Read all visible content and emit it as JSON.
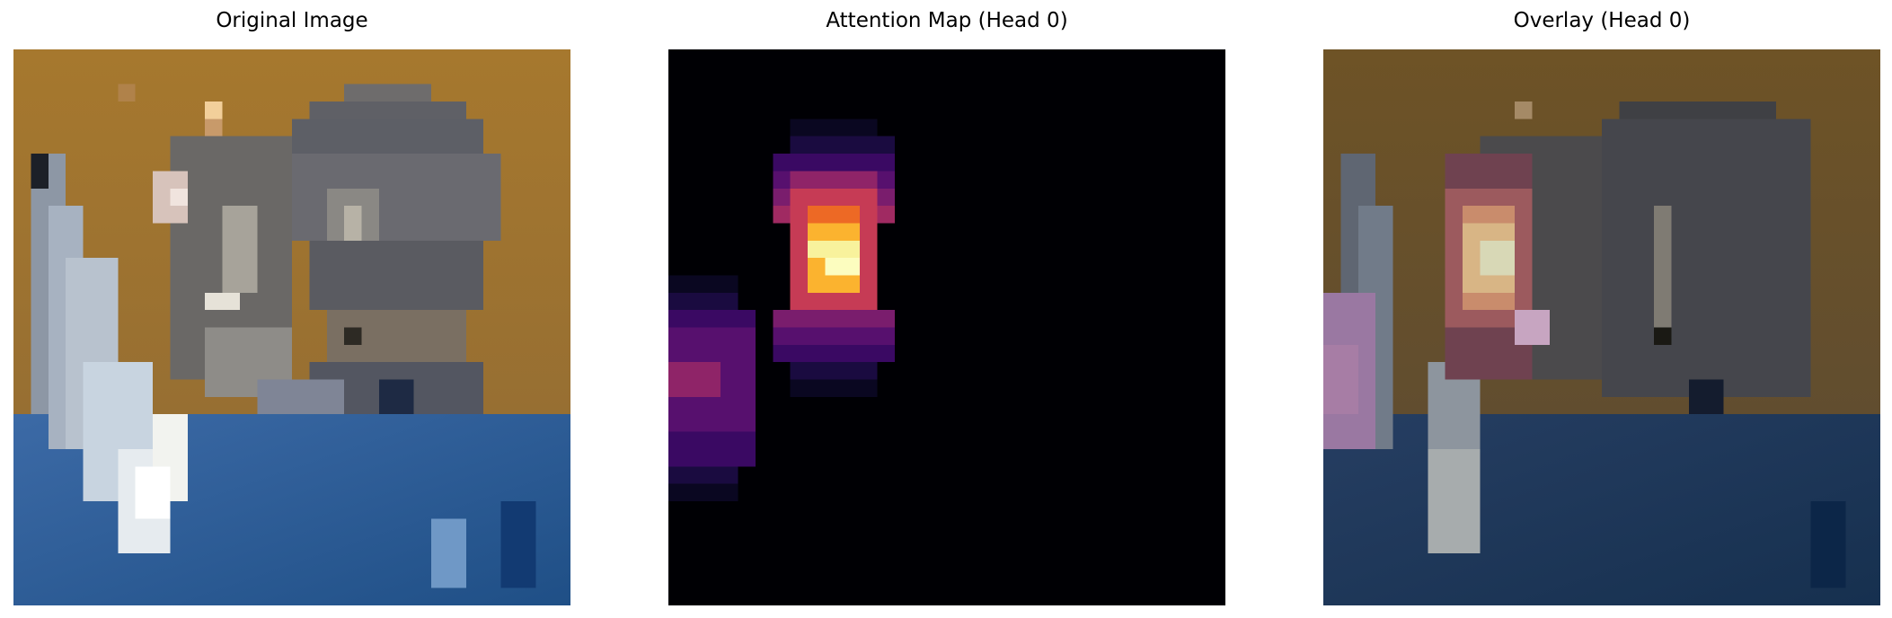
{
  "figure": {
    "panels": [
      {
        "title": "Original Image",
        "kind": "original"
      },
      {
        "title": "Attention Map (Head 0)",
        "kind": "attention"
      },
      {
        "title": "Overlay (Head 0)",
        "kind": "overlay"
      }
    ],
    "colormap": "inferno",
    "colors": {
      "background": "#ffffff",
      "wall": "#a6782e",
      "water": "#2e5f9a",
      "attention_peak": "#fcfdbf"
    }
  }
}
